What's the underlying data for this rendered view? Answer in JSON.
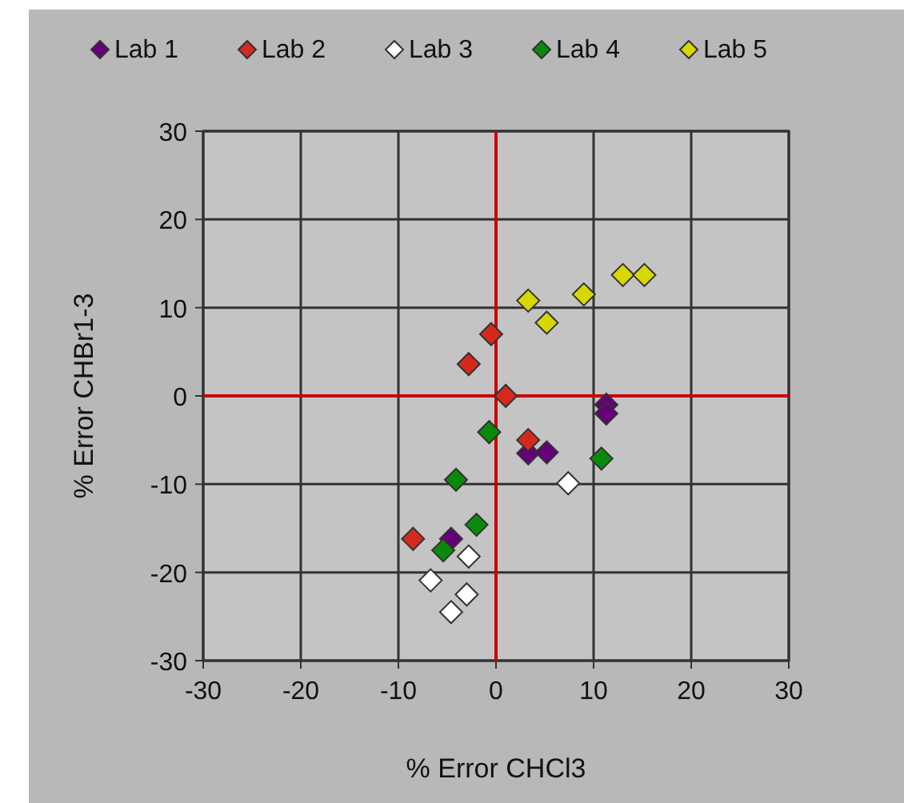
{
  "chart_data": {
    "type": "scatter",
    "xlabel": "% Error CHCl3",
    "ylabel": "% Error CHBr1-3",
    "xlim": [
      -30,
      30
    ],
    "ylim": [
      -30,
      30
    ],
    "xticks": [
      -30,
      -20,
      -10,
      0,
      10,
      20,
      30
    ],
    "yticks": [
      -30,
      -20,
      -10,
      0,
      10,
      20,
      30
    ],
    "grid": true,
    "legend": "top",
    "marker": "diamond",
    "series": [
      {
        "name": "Lab 1",
        "color": "#66007a",
        "x": [
          11.3,
          11.3,
          3.3,
          5.2,
          -4.6
        ],
        "values": [
          -1,
          -2,
          -6.5,
          -6.4,
          -16.2
        ]
      },
      {
        "name": "Lab 2",
        "color": "#d42a1e",
        "x": [
          -0.5,
          -2.8,
          1,
          3.3,
          -8.5
        ],
        "values": [
          7,
          3.6,
          0,
          -5,
          -16.2
        ]
      },
      {
        "name": "Lab 3",
        "color": "#ffffff",
        "x": [
          7.4,
          -2.8,
          -6.7,
          -3,
          -4.6
        ],
        "values": [
          -9.9,
          -18.2,
          -20.9,
          -22.5,
          -24.5
        ]
      },
      {
        "name": "Lab 4",
        "color": "#0a8a0a",
        "x": [
          -0.7,
          -4.1,
          10.8,
          -2,
          -5.4
        ],
        "values": [
          -4.1,
          -9.5,
          -7.1,
          -14.6,
          -17.5
        ]
      },
      {
        "name": "Lab 5",
        "color": "#d8d800",
        "x": [
          3.3,
          5.2,
          9,
          13,
          15.2
        ],
        "values": [
          10.8,
          8.3,
          11.5,
          13.7,
          13.7
        ]
      }
    ]
  }
}
